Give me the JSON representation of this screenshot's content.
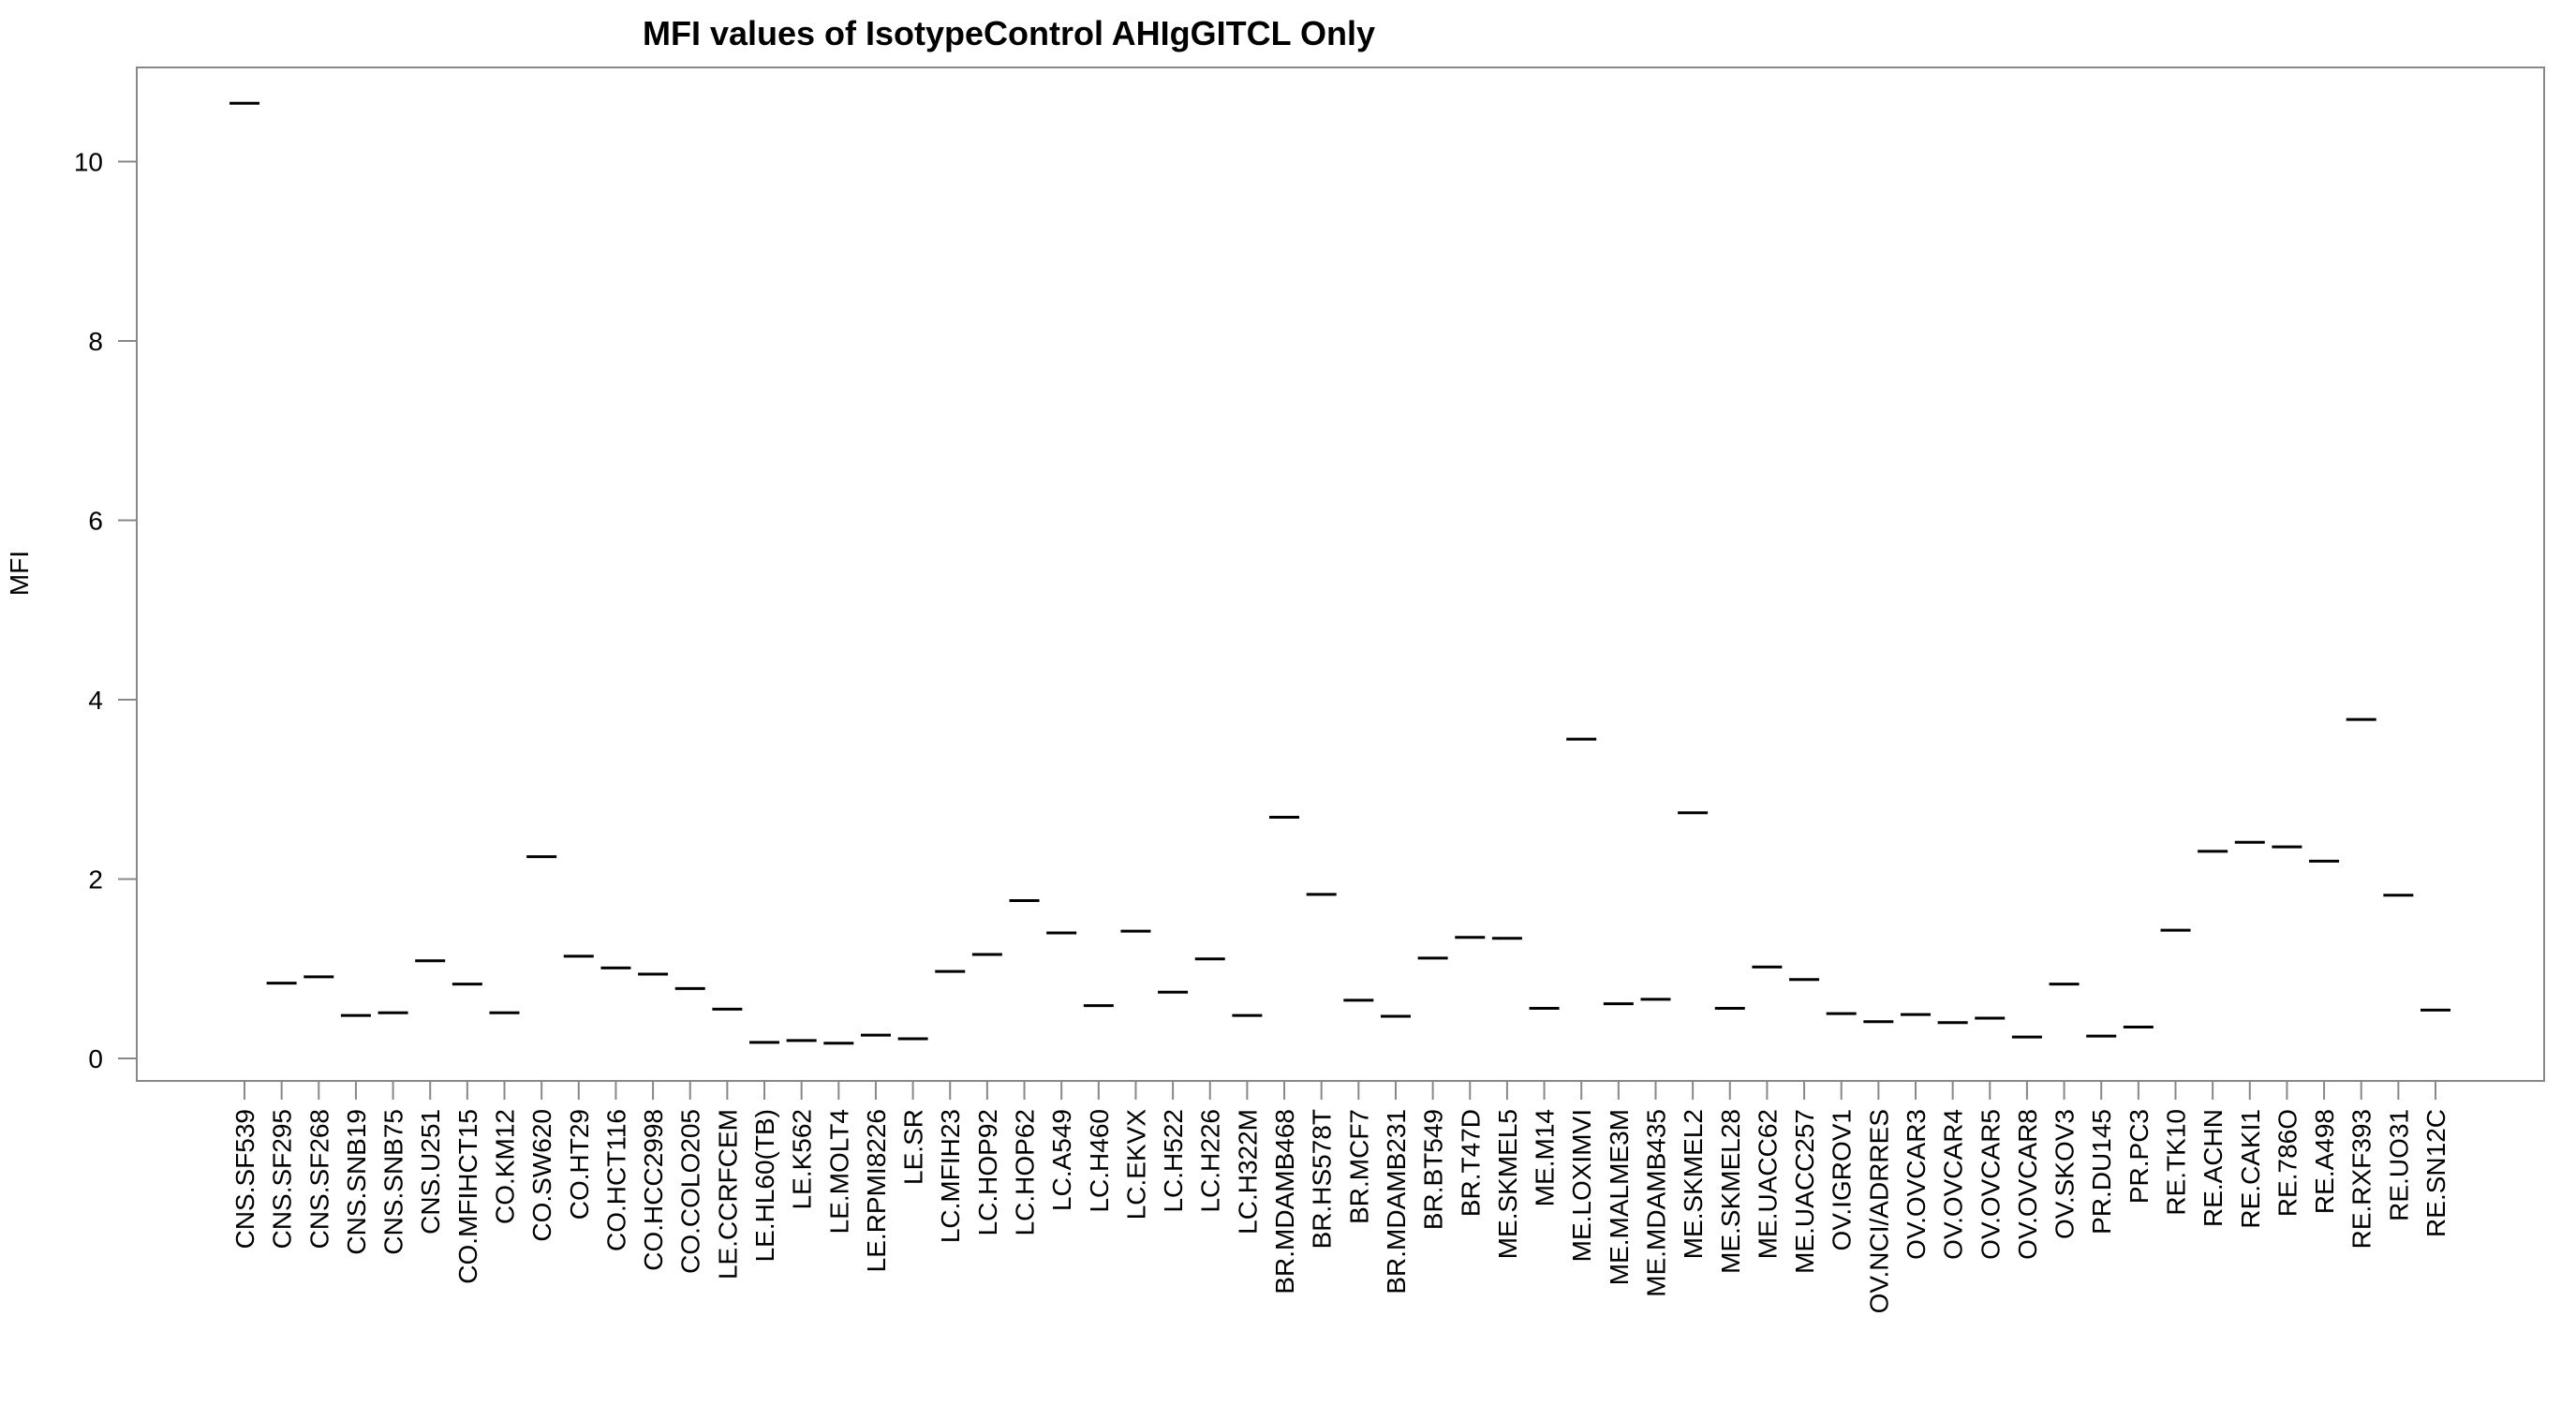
{
  "chart_data": {
    "type": "scatter",
    "title": "MFI values of IsotypeControl AHIgGITCL Only",
    "xlabel": "",
    "ylabel": "MFI",
    "ylim": [
      -0.25,
      11.05
    ],
    "yticks": [
      0,
      2,
      4,
      6,
      8,
      10
    ],
    "grid": false,
    "legend": "none",
    "categories": [
      "CNS.SF539",
      "CNS.SF295",
      "CNS.SF268",
      "CNS.SNB19",
      "CNS.SNB75",
      "CNS.U251",
      "CO.MFIHCT15",
      "CO.KM12",
      "CO.SW620",
      "CO.HT29",
      "CO.HCT116",
      "CO.HCC2998",
      "CO.COLO205",
      "LE.CCRFCEM",
      "LE.HL60(TB)",
      "LE.K562",
      "LE.MOLT4",
      "LE.RPMI8226",
      "LE.SR",
      "LC.MFIH23",
      "LC.HOP92",
      "LC.HOP62",
      "LC.A549",
      "LC.H460",
      "LC.EKVX",
      "LC.H522",
      "LC.H226",
      "LC.H322M",
      "BR.MDAMB468",
      "BR.HS578T",
      "BR.MCF7",
      "BR.MDAMB231",
      "BR.BT549",
      "BR.T47D",
      "ME.SKMEL5",
      "ME.M14",
      "ME.LOXIMVI",
      "ME.MALME3M",
      "ME.MDAMB435",
      "ME.SKMEL2",
      "ME.SKMEL28",
      "ME.UACC62",
      "ME.UACC257",
      "OV.IGROV1",
      "OV.NCI/ADRRES",
      "OV.OVCAR3",
      "OV.OVCAR4",
      "OV.OVCAR5",
      "OV.OVCAR8",
      "OV.SKOV3",
      "PR.DU145",
      "PR.PC3",
      "RE.TK10",
      "RE.ACHN",
      "RE.CAKI1",
      "RE.786O",
      "RE.A498",
      "RE.RXF393",
      "RE.UO31",
      "RE.SN12C"
    ],
    "values": [
      10.65,
      0.84,
      0.91,
      0.48,
      0.51,
      1.09,
      0.83,
      0.51,
      2.25,
      1.14,
      1.01,
      0.94,
      0.78,
      0.55,
      0.18,
      0.2,
      0.17,
      0.26,
      0.22,
      0.97,
      1.16,
      1.76,
      1.4,
      0.59,
      1.42,
      0.74,
      1.11,
      0.48,
      2.69,
      1.83,
      0.65,
      0.47,
      1.12,
      1.35,
      1.34,
      0.56,
      3.56,
      0.61,
      0.66,
      2.74,
      0.56,
      1.02,
      0.88,
      0.5,
      0.41,
      0.49,
      0.4,
      0.45,
      0.24,
      0.83,
      0.25,
      0.35,
      1.43,
      2.31,
      2.41,
      2.36,
      2.2,
      3.78,
      1.82,
      0.54
    ]
  }
}
